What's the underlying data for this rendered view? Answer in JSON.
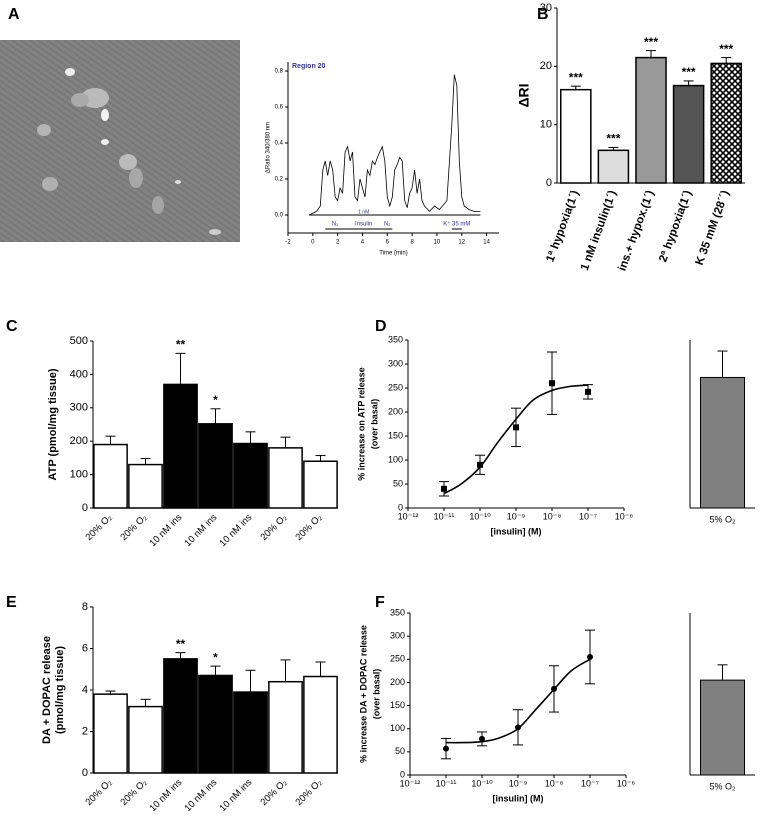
{
  "chart_data": [
    {
      "type": "line",
      "panel": "A",
      "title": "Region 20",
      "xlabel": "Time (min)",
      "ylabel": "ΔRatio 340/380 nm",
      "x": [
        -0.3,
        0.3,
        0.6,
        0.8,
        1.0,
        1.2,
        1.4,
        1.6,
        1.8,
        2.0,
        2.2,
        2.4,
        2.6,
        2.8,
        3.0,
        3.2,
        3.4,
        3.6,
        3.8,
        4.0,
        4.2,
        4.4,
        4.6,
        4.8,
        5.0,
        5.2,
        5.4,
        5.6,
        5.8,
        6.0,
        6.2,
        6.4,
        6.6,
        6.8,
        7.0,
        7.2,
        7.4,
        7.6,
        7.8,
        8.0,
        8.2,
        8.4,
        8.6,
        8.8,
        9.0,
        9.4,
        9.8,
        10.2,
        10.8,
        11.2,
        11.4,
        11.6,
        11.8,
        12.0,
        12.2,
        12.6,
        13.0,
        13.5
      ],
      "values": [
        0,
        0.02,
        0.05,
        0.25,
        0.3,
        0.22,
        0.3,
        0.25,
        0.1,
        0.08,
        0.15,
        0.12,
        0.35,
        0.38,
        0.3,
        0.35,
        0.1,
        0.08,
        0.2,
        0.15,
        0.1,
        0.25,
        0.22,
        0.3,
        0.28,
        0.32,
        0.35,
        0.38,
        0.3,
        0.1,
        0.05,
        0.1,
        0.25,
        0.28,
        0.32,
        0.3,
        0.08,
        0.04,
        0.12,
        0.15,
        0.25,
        0.12,
        0.2,
        0.08,
        0.05,
        0.02,
        0.05,
        0.03,
        0.08,
        0.5,
        0.78,
        0.72,
        0.3,
        0.1,
        0.05,
        0.03,
        0.02,
        0.02
      ],
      "color": "#000000",
      "baseline_color": "#cc3355",
      "annotation_color": "#333399",
      "xlim": [
        -2,
        15
      ],
      "xticks": [
        -2,
        0,
        2,
        4,
        6,
        8,
        10,
        12,
        14
      ],
      "ylim": [
        -0.1,
        0.85
      ],
      "yticks": [
        {
          "value": 0,
          "label": "0,0"
        },
        {
          "value": 0.2,
          "label": "0,2"
        },
        {
          "value": 0.4,
          "label": "0,4"
        },
        {
          "value": 0.6,
          "label": "0,6"
        },
        {
          "value": 0.8,
          "label": "0,8"
        }
      ],
      "periods": [
        {
          "label": "N₂",
          "start": 1.0,
          "end": 2.6
        },
        {
          "label": "Insulin",
          "dose": "1 nM",
          "start": 2.6,
          "end": 5.6
        },
        {
          "label": "N₂",
          "start": 5.6,
          "end": 6.4
        },
        {
          "label": "K⁺ 35 mM",
          "start": 11.2,
          "end": 12.0
        }
      ]
    },
    {
      "type": "bar",
      "panel": "B",
      "ylabel": "ΔRI",
      "categories": [
        "1ª hypoxia(1´)",
        "1 nM insulin(1´)",
        "ins.+ hypox.(1´)",
        "2ª hypoxia(1´)",
        "K 35 mM (28´´)"
      ],
      "values": [
        16,
        5.6,
        21.5,
        16.7,
        20.5
      ],
      "errors": [
        0.6,
        0.5,
        1.2,
        0.8,
        1.0
      ],
      "annotations": [
        "***",
        "***",
        "***",
        "***",
        "***"
      ],
      "colors": [
        "#ffffff",
        "#dddddd",
        "#999999",
        "#555555",
        "crosshatch"
      ],
      "ylim": [
        0,
        30
      ],
      "yticks": [
        0,
        10,
        20,
        30
      ]
    },
    {
      "type": "bar",
      "panel": "C",
      "ylabel": "ATP (pmol/mg tissue)",
      "categories": [
        "20% O₂",
        "20% O₂",
        "10 nM ins",
        "10 nM ins",
        "10 nM ins",
        "20% O₂",
        "20% O₂"
      ],
      "values": [
        190,
        130,
        370,
        252,
        193,
        180,
        140
      ],
      "errors": [
        25,
        18,
        93,
        45,
        35,
        32,
        17
      ],
      "annotations": [
        null,
        null,
        "**",
        "*",
        null,
        null,
        null
      ],
      "colors": [
        "#ffffff",
        "#ffffff",
        "#000000",
        "#000000",
        "#000000",
        "#ffffff",
        "#ffffff"
      ],
      "ylim": [
        0,
        500
      ],
      "yticks": [
        0,
        100,
        200,
        300,
        400,
        500
      ]
    },
    {
      "type": "scatter",
      "panel": "D",
      "ylabel": [
        "% increase on ATP release",
        "(over basal)"
      ],
      "xlabel": "[insulin] (M)",
      "x": [
        1e-11,
        1e-10,
        1e-09,
        1e-08,
        1e-07
      ],
      "values": [
        40,
        90,
        168,
        260,
        242
      ],
      "errors": [
        15,
        20,
        40,
        65,
        15
      ],
      "marker": "square",
      "fit": {
        "x": [
          1e-11,
          3e-11,
          1e-10,
          3e-10,
          1e-09,
          3e-09,
          1e-08,
          3e-08,
          1e-07
        ],
        "y": [
          30,
          50,
          85,
          135,
          185,
          225,
          245,
          253,
          256
        ]
      },
      "bar": {
        "category": "5% O₂",
        "value": 272,
        "error": 55,
        "color": "#808080"
      },
      "xscale": "log",
      "xlim": [
        1e-12,
        1e-06
      ],
      "xticks": [
        {
          "value": 1e-12,
          "label": "10⁻¹²"
        },
        {
          "value": 1e-11,
          "label": "10⁻¹¹"
        },
        {
          "value": 1e-10,
          "label": "10⁻¹⁰"
        },
        {
          "value": 1e-09,
          "label": "10⁻⁹"
        },
        {
          "value": 1e-08,
          "label": "10⁻⁸"
        },
        {
          "value": 1e-07,
          "label": "10⁻⁷"
        },
        {
          "value": 1e-06,
          "label": "10⁻⁶"
        }
      ],
      "ylim": [
        0,
        350
      ],
      "yticks": [
        0,
        50,
        100,
        150,
        200,
        250,
        300,
        350
      ]
    },
    {
      "type": "bar",
      "panel": "E",
      "ylabel": [
        "DA + DOPAC release",
        "(pmol/mg tissue)"
      ],
      "categories": [
        "20% O₂",
        "20% O₂",
        "10 nM ins",
        "10 nM ins",
        "10 nM ins",
        "20% O₂",
        "20% O₂"
      ],
      "values": [
        3.8,
        3.2,
        5.5,
        4.7,
        3.9,
        4.4,
        4.65
      ],
      "errors": [
        0.15,
        0.35,
        0.3,
        0.45,
        1.05,
        1.05,
        0.7
      ],
      "annotations": [
        null,
        null,
        "**",
        "*",
        null,
        null,
        null
      ],
      "colors": [
        "#ffffff",
        "#ffffff",
        "#000000",
        "#000000",
        "#000000",
        "#ffffff",
        "#ffffff"
      ],
      "ylim": [
        0,
        8
      ],
      "yticks": [
        0,
        2,
        4,
        6,
        8
      ]
    },
    {
      "type": "scatter",
      "panel": "F",
      "ylabel": [
        "% increase DA + DOPAC release",
        "(over basal)"
      ],
      "xlabel": "[insulin] (M)",
      "x": [
        1e-11,
        1e-10,
        1e-09,
        1e-08,
        1e-07
      ],
      "values": [
        57,
        78,
        103,
        186,
        255
      ],
      "errors": [
        22,
        15,
        38,
        50,
        58
      ],
      "marker": "circle",
      "fit": {
        "x": [
          1e-11,
          3e-11,
          1e-10,
          3e-10,
          1e-09,
          3e-09,
          1e-08,
          3e-08,
          1e-07
        ],
        "y": [
          70,
          70,
          72,
          80,
          100,
          140,
          185,
          225,
          250
        ]
      },
      "bar": {
        "category": "5% O₂",
        "value": 205,
        "error": 33,
        "color": "#808080"
      },
      "xscale": "log",
      "xlim": [
        1e-12,
        1e-06
      ],
      "xticks": [
        {
          "value": 1e-12,
          "label": "10⁻¹²"
        },
        {
          "value": 1e-11,
          "label": "10⁻¹¹"
        },
        {
          "value": 1e-10,
          "label": "10⁻¹⁰"
        },
        {
          "value": 1e-09,
          "label": "10⁻⁹"
        },
        {
          "value": 1e-08,
          "label": "10⁻⁸"
        },
        {
          "value": 1e-07,
          "label": "10⁻⁷"
        },
        {
          "value": 1e-06,
          "label": "10⁻⁶"
        }
      ],
      "ylim": [
        0,
        350
      ],
      "yticks": [
        0,
        50,
        100,
        150,
        200,
        250,
        300,
        350
      ]
    }
  ]
}
